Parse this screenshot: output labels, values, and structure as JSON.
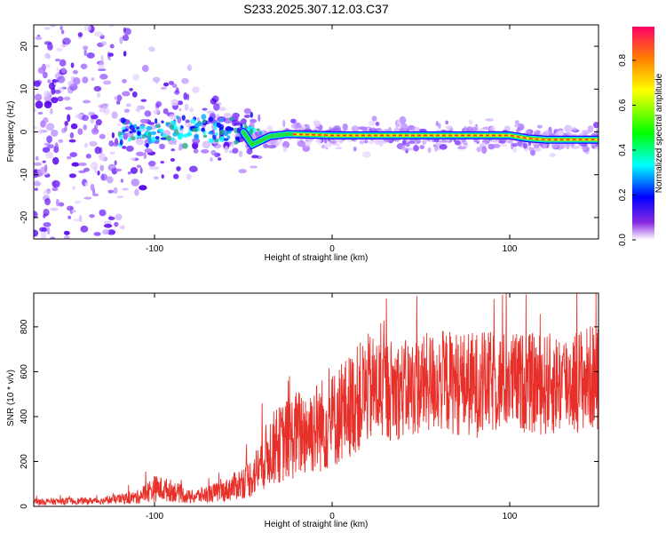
{
  "title": "S233.2025.307.12.03.C37",
  "colors": {
    "snr_line": "#e8302a",
    "spectrogram_low": "#b07bff",
    "spectrogram_mid": "#5a00ff",
    "spectrogram_high": "#ff0000"
  },
  "chart_data": [
    {
      "type": "heatmap",
      "title": "S233.2025.307.12.03.C37",
      "xlabel": "Height of straight line (km)",
      "ylabel": "Frequency (Hz)",
      "xlim": [
        -168,
        150
      ],
      "ylim": [
        -25,
        25
      ],
      "xticks": [
        -100,
        0,
        100
      ],
      "xtick_labels": [
        "-100",
        "0",
        "100"
      ],
      "yticks": [
        -20,
        -10,
        0,
        10,
        20
      ],
      "ytick_labels": [
        "-20",
        "-10",
        "0",
        "10",
        "20"
      ],
      "grid": false,
      "colorbar": {
        "label": "Normalized spectral amplitude",
        "range": [
          0.0,
          0.95
        ],
        "ticks": [
          0.0,
          0.2,
          0.4,
          0.6,
          0.8
        ],
        "tick_labels": [
          "0.0",
          "0.2",
          "0.4",
          "0.6",
          "0.8"
        ],
        "colormap": "rainbow (white-purple-blue-cyan-green-yellow-red)"
      },
      "ridge": {
        "description": "dominant frequency line",
        "x": [
          -168,
          -50,
          -45,
          -35,
          -25,
          0,
          50,
          100,
          110,
          120,
          150
        ],
        "frequency": [
          0,
          0,
          -3,
          -1,
          -0.5,
          -0.8,
          -0.8,
          -0.8,
          -1.5,
          -1.8,
          -1.8
        ]
      }
    },
    {
      "type": "line",
      "xlabel": "Height of straight line (km)",
      "ylabel": "SNR (10 * v/v)",
      "xlim": [
        -168,
        150
      ],
      "ylim": [
        0,
        950
      ],
      "xticks": [
        -100,
        0,
        100
      ],
      "xtick_labels": [
        "-100",
        "0",
        "100"
      ],
      "yticks": [
        0,
        200,
        400,
        600,
        800
      ],
      "ytick_labels": [
        "0",
        "200",
        "400",
        "600",
        "800"
      ],
      "grid": false,
      "envelope": {
        "x": [
          -168,
          -130,
          -110,
          -100,
          -90,
          -80,
          -60,
          -45,
          -35,
          -20,
          0,
          20,
          40,
          60,
          80,
          100,
          120,
          150
        ],
        "mean": [
          20,
          25,
          40,
          80,
          70,
          40,
          70,
          130,
          250,
          320,
          380,
          520,
          520,
          560,
          540,
          560,
          540,
          580
        ],
        "spread": [
          15,
          15,
          30,
          60,
          50,
          30,
          50,
          90,
          160,
          200,
          220,
          250,
          220,
          230,
          240,
          220,
          230,
          240
        ]
      }
    }
  ]
}
